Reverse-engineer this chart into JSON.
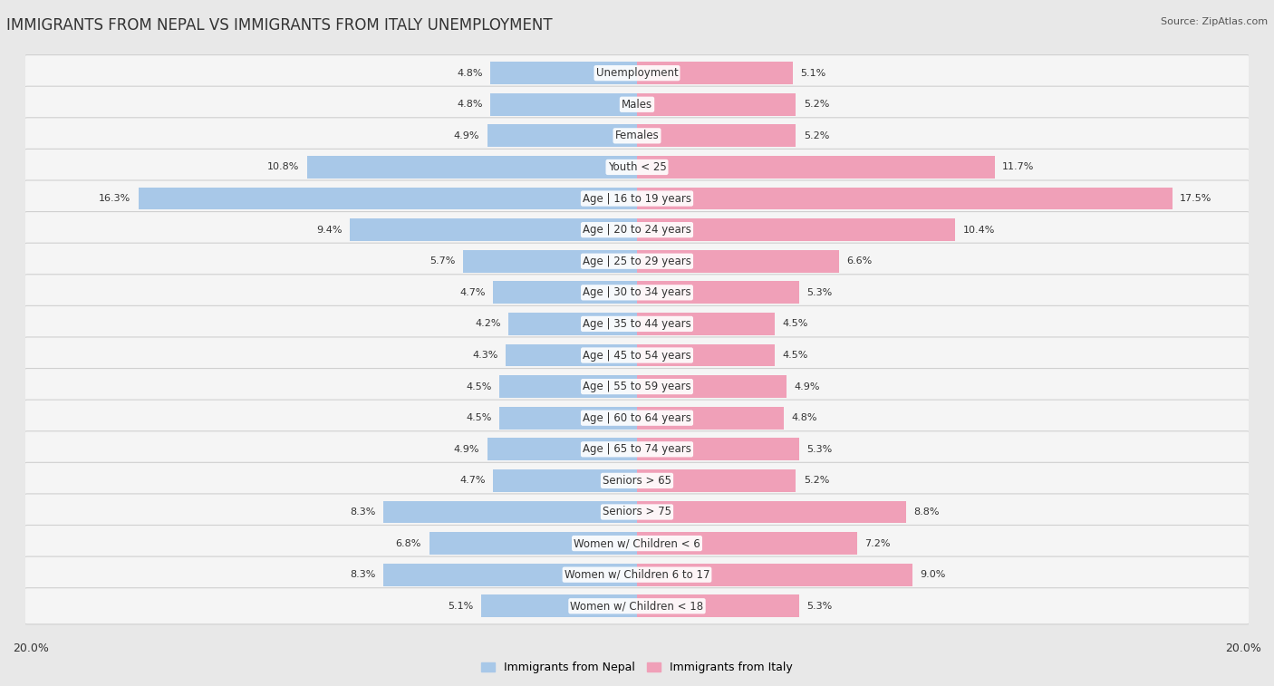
{
  "title": "IMMIGRANTS FROM NEPAL VS IMMIGRANTS FROM ITALY UNEMPLOYMENT",
  "source": "Source: ZipAtlas.com",
  "categories": [
    "Unemployment",
    "Males",
    "Females",
    "Youth < 25",
    "Age | 16 to 19 years",
    "Age | 20 to 24 years",
    "Age | 25 to 29 years",
    "Age | 30 to 34 years",
    "Age | 35 to 44 years",
    "Age | 45 to 54 years",
    "Age | 55 to 59 years",
    "Age | 60 to 64 years",
    "Age | 65 to 74 years",
    "Seniors > 65",
    "Seniors > 75",
    "Women w/ Children < 6",
    "Women w/ Children 6 to 17",
    "Women w/ Children < 18"
  ],
  "nepal_values": [
    4.8,
    4.8,
    4.9,
    10.8,
    16.3,
    9.4,
    5.7,
    4.7,
    4.2,
    4.3,
    4.5,
    4.5,
    4.9,
    4.7,
    8.3,
    6.8,
    8.3,
    5.1
  ],
  "italy_values": [
    5.1,
    5.2,
    5.2,
    11.7,
    17.5,
    10.4,
    6.6,
    5.3,
    4.5,
    4.5,
    4.9,
    4.8,
    5.3,
    5.2,
    8.8,
    7.2,
    9.0,
    5.3
  ],
  "nepal_color": "#a8c8e8",
  "italy_color": "#f0a0b8",
  "nepal_label": "Immigrants from Nepal",
  "italy_label": "Immigrants from Italy",
  "max_val": 20.0,
  "background_color": "#e8e8e8",
  "row_bg_color": "#f5f5f5",
  "title_fontsize": 12,
  "source_fontsize": 8,
  "label_fontsize": 8.5,
  "value_fontsize": 8
}
